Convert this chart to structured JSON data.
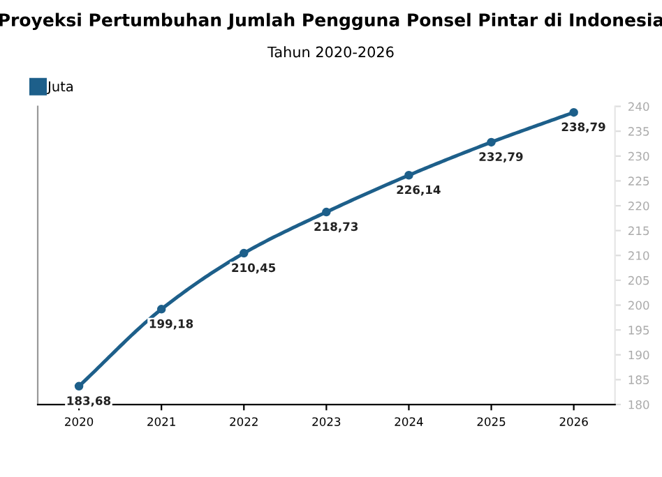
{
  "chart_data": {
    "type": "line",
    "title": "Proyeksi Pertumbuhan Jumlah Pengguna Ponsel Pintar di Indonesia",
    "subtitle": "Tahun 2020-2026",
    "x": [
      2020,
      2021,
      2022,
      2023,
      2024,
      2025,
      2026
    ],
    "series": [
      {
        "name": "Juta",
        "color": "#1d5f8a",
        "values": [
          183.68,
          199.18,
          210.45,
          218.73,
          226.14,
          232.79,
          238.79
        ]
      }
    ],
    "value_labels": [
      "183,68",
      "199,18",
      "210,45",
      "218,73",
      "226,14",
      "232,79",
      "238,79"
    ],
    "xlim": [
      2019.5,
      2026.5
    ],
    "xticks": [
      2020,
      2021,
      2022,
      2023,
      2024,
      2025,
      2026
    ],
    "ylim": [
      180,
      240
    ],
    "yticks": [
      180,
      185,
      190,
      195,
      200,
      205,
      210,
      215,
      220,
      225,
      230,
      235,
      240
    ],
    "marker": "circle",
    "line_style": "solid",
    "grid": false,
    "legend": "top left"
  }
}
